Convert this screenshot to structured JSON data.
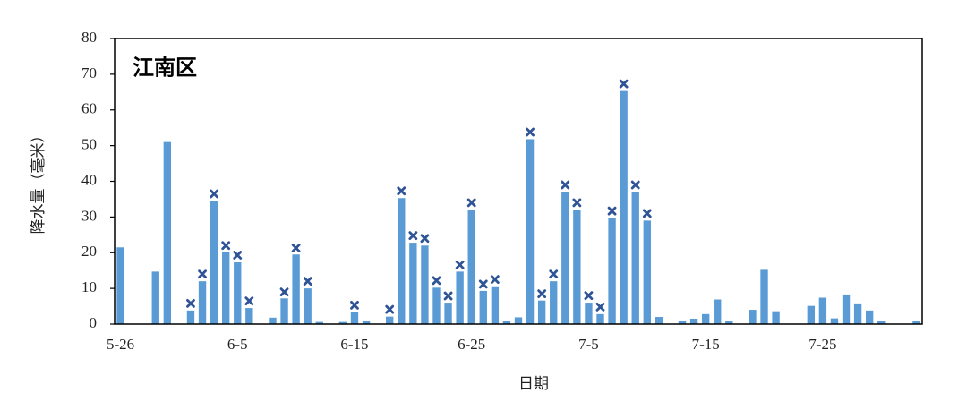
{
  "chart_data": {
    "type": "bar",
    "title": "江南区",
    "x_label": "日期",
    "y_label": "降水量（毫米）",
    "categories": [
      "5-26",
      null,
      null,
      null,
      null,
      null,
      null,
      null,
      null,
      null,
      "6-5",
      null,
      null,
      null,
      null,
      null,
      null,
      null,
      null,
      null,
      "6-15",
      null,
      null,
      null,
      null,
      null,
      null,
      null,
      null,
      null,
      "6-25",
      null,
      null,
      null,
      null,
      null,
      null,
      null,
      null,
      null,
      "7-5",
      null,
      null,
      null,
      null,
      null,
      null,
      null,
      null,
      null,
      "7-15",
      null,
      null,
      null,
      null,
      null,
      null,
      null,
      null,
      null,
      "7-25",
      null,
      null,
      null,
      null,
      null,
      null,
      null,
      null
    ],
    "series": [
      {
        "color": "#5b9bd5",
        "values": [
          21.5,
          0,
          0,
          14.7,
          51,
          0,
          3.8,
          12,
          34.5,
          20.3,
          17.3,
          4.5,
          0,
          1.8,
          7.2,
          19.5,
          10,
          0.6,
          0,
          0.6,
          3.3,
          0.8,
          0,
          2.1,
          35.3,
          22.8,
          22,
          10.2,
          6,
          14.7,
          32,
          9.3,
          10.6,
          0.8,
          1.9,
          51.8,
          6.6,
          12,
          37,
          32,
          6,
          2.8,
          29.8,
          65.3,
          37.1,
          29,
          2,
          0,
          0.9,
          1.5,
          2.8,
          6.9,
          1,
          0,
          4,
          15.2,
          3.6,
          0,
          0,
          5.1,
          7.4,
          1.6,
          8.3,
          5.8,
          3.8,
          0.9,
          0,
          0,
          0.9
        ]
      },
      {
        "type": "scatter",
        "marker": "x",
        "color": "#2f5496",
        "values": [
          null,
          null,
          null,
          null,
          null,
          null,
          5.8,
          14,
          36.5,
          22,
          19.3,
          6.5,
          null,
          null,
          9,
          21.3,
          12,
          null,
          null,
          null,
          5.3,
          null,
          null,
          4.1,
          37.3,
          24.8,
          24,
          12.2,
          7.9,
          16.6,
          34,
          11.2,
          12.5,
          null,
          null,
          53.8,
          8.5,
          14,
          39,
          34,
          8,
          4.8,
          31.7,
          67.3,
          39,
          31,
          null,
          null,
          null,
          null,
          null,
          null,
          null,
          null,
          null,
          null,
          null,
          null,
          null,
          null,
          null,
          null,
          null,
          null,
          null,
          null,
          null,
          null,
          null
        ]
      }
    ],
    "ylim": [
      0,
      80
    ],
    "yticks": [
      0,
      10,
      20,
      30,
      40,
      50,
      60,
      70,
      80
    ]
  }
}
